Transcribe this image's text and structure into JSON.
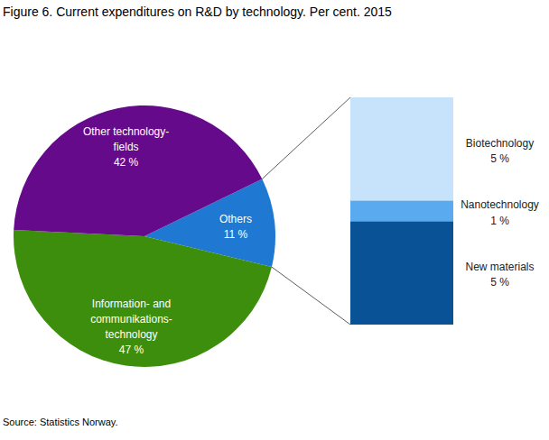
{
  "chart_data": [
    {
      "type": "pie",
      "title": "Figure 6. Current expenditures on R&D by technology. Per cent. 2015",
      "caption": "Source: Statistics Norway.",
      "categories": [
        "Others",
        "Information- and\ncommunikations-\ntechnology",
        "Other technology-\nfields"
      ],
      "values": [
        11,
        47,
        42
      ],
      "value_labels": [
        "11 %",
        "47 %",
        "42 %"
      ],
      "colors": [
        "#1f78d1",
        "#3e8e0d",
        "#660a8c"
      ],
      "data_labels": true
    },
    {
      "type": "bar",
      "stacked": true,
      "tick_labels": false,
      "categories": [
        "Biotechnology",
        "Nanotechnology",
        "New materials"
      ],
      "values": [
        5,
        1,
        5
      ],
      "value_labels": [
        "5 %",
        "1 %",
        "5 %"
      ],
      "colors": [
        "#c6e3fb",
        "#5aaaf0",
        "#0a5296"
      ],
      "data_labels": true
    }
  ]
}
